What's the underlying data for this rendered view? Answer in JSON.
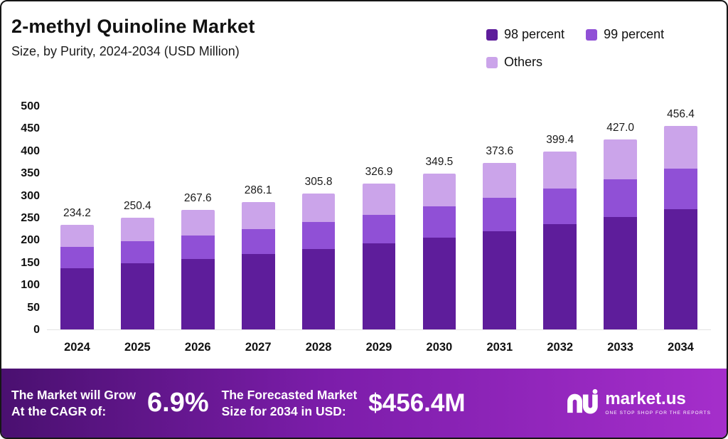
{
  "header": {
    "title": "2-methyl Quinoline Market",
    "subtitle": "Size, by Purity, 2024-2034 (USD Million)"
  },
  "chart_data": {
    "type": "bar",
    "stacked": true,
    "title": "2-methyl Quinoline Market Size, by Purity, 2024-2034 (USD Million)",
    "categories": [
      "2024",
      "2025",
      "2026",
      "2027",
      "2028",
      "2029",
      "2030",
      "2031",
      "2032",
      "2033",
      "2034"
    ],
    "series": [
      {
        "name": "98 percent",
        "color": "#5e1d9b",
        "values": [
          138.0,
          148.0,
          158.0,
          169.0,
          180.0,
          193.0,
          206.0,
          220.0,
          236.0,
          252.0,
          270.0
        ]
      },
      {
        "name": "99 percent",
        "color": "#9050d6",
        "values": [
          47.0,
          50.0,
          53.0,
          57.0,
          61.0,
          65.0,
          70.0,
          75.0,
          80.0,
          85.0,
          91.0
        ]
      },
      {
        "name": "Others",
        "color": "#cba4ea",
        "values": [
          49.2,
          52.4,
          56.6,
          60.1,
          64.8,
          68.9,
          73.5,
          78.6,
          83.4,
          90.0,
          95.4
        ]
      }
    ],
    "totals": [
      234.2,
      250.4,
      267.6,
      286.1,
      305.8,
      326.9,
      349.5,
      373.6,
      399.4,
      427.0,
      456.4
    ],
    "xlabel": "",
    "ylabel": "",
    "ylim": [
      0,
      500
    ],
    "yticks": [
      0,
      50,
      100,
      150,
      200,
      250,
      300,
      350,
      400,
      450,
      500
    ],
    "grid": false,
    "legend_position": "top-right"
  },
  "footer": {
    "cagr_label_line1": "The Market will Grow",
    "cagr_label_line2": "At the CAGR of:",
    "cagr_value": "6.9%",
    "forecast_label_line1": "The Forecasted Market",
    "forecast_label_line2": "Size for 2034 in USD:",
    "forecast_value": "$456.4M",
    "brand_name": "market.us",
    "brand_tagline": "ONE STOP SHOP FOR THE REPORTS"
  }
}
